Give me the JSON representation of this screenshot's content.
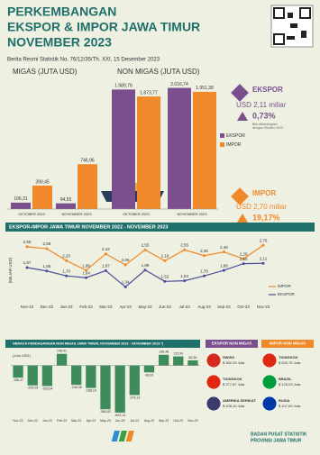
{
  "header": {
    "title": [
      "PERKEMBANGAN",
      "EKSPOR & IMPOR JAWA TIMUR",
      "NOVEMBER 2023"
    ],
    "subtitle": "Berita Resmi Statistik No. 76/12/35/Th. XXI, 15 Desember 2023"
  },
  "summary": {
    "export": {
      "label": "EKSPOR",
      "value": "USD 2,11 miliar",
      "change": "0,73%",
      "note": [
        "Bila dibandingkan",
        "dengan Oktober 2023"
      ]
    },
    "import": {
      "label": "IMPOR",
      "value": "USD 2,70 miliar",
      "change": "19,17%",
      "note": [
        "Bila dibandingkan",
        "dengan Oktober 2023"
      ]
    }
  },
  "country": {
    "export": {
      "title": "EKSPOR NON MIGAS",
      "items": [
        {
          "name": "SWISS",
          "value": "$ 382,25 Juta"
        },
        {
          "name": "TIONGKOK",
          "value": "$ 277,87 Juta"
        },
        {
          "name": "AMERIKA SERIKAT",
          "value": "$ 208,10 Juta"
        }
      ]
    },
    "import": {
      "title": "IMPOR NON MIGAS",
      "items": [
        {
          "name": "TIONGKOK",
          "value": "$ 633,76 Juta"
        },
        {
          "name": "BRAZIL",
          "value": "$ 125,03 Juta"
        },
        {
          "name": "RUSIA",
          "value": "$ 107,89 Juta"
        }
      ]
    }
  },
  "footer": {
    "org": "BADAN PUSAT STATISTIK",
    "region": "PROVINSI JAWA TIMUR"
  },
  "chart_data": [
    {
      "type": "bar",
      "group_labels": [
        "MIGAS (JUTA USD)",
        "NON MIGAS (JUTA USD)"
      ],
      "categories": [
        "OKTOBER 2023",
        "NOVEMBER 2023",
        "OKTOBER 2023",
        "NOVEMBER 2023"
      ],
      "ylim": [
        0,
        2100
      ],
      "series": [
        {
          "name": "EKSPOR",
          "color": "#7b4f8e",
          "values": [
            106.31,
            94.55,
            1989.76,
            2016.74
          ],
          "value_labels": [
            "106,31",
            "94,55",
            "1.989,76",
            "2.016,74"
          ]
        },
        {
          "name": "IMPOR",
          "color": "#f0892a",
          "values": [
            390.45,
            746.96,
            1873.77,
            1951.38
          ],
          "value_labels": [
            "390,45",
            "746,96",
            "1.873,77",
            "1.951,38"
          ]
        }
      ]
    },
    {
      "type": "line",
      "title": "EKSPOR-IMPOR JAWA TIMUR NOVEMBER 2022 - NOVEMBER 2023",
      "ylabel": "(MILIAR USD)",
      "categories": [
        "Nov-22",
        "Dec-22",
        "Jan-23",
        "Feb-23",
        "Mar-23",
        "Apr-23",
        "May-23",
        "Jun-23",
        "Jul-23",
        "Aug-23",
        "Sep-23",
        "Oct-23",
        "Nov-23"
      ],
      "ylim": [
        1,
        3
      ],
      "series": [
        {
          "name": "IMPOR",
          "color": "#f0892a",
          "values": [
            2.65,
            2.59,
            2.2,
            1.88,
            2.42,
            2.06,
            2.55,
            2.19,
            2.55,
            2.36,
            2.48,
            2.26,
            2.7
          ],
          "value_labels": [
            "2,65",
            "2,59",
            "2,20",
            "1,88",
            "2,42",
            "2,06",
            "2,55",
            "2,19",
            "2,55",
            "2,36",
            "2,48",
            "2,26",
            "2,70"
          ]
        },
        {
          "name": "EKSPOR",
          "color": "#4b4f9a",
          "values": [
            1.97,
            1.86,
            1.7,
            1.64,
            1.87,
            1.34,
            1.89,
            1.52,
            1.54,
            1.7,
            1.88,
            2.1,
            2.11
          ],
          "value_labels": [
            "1,97",
            "1,86",
            "1,70",
            "1,64",
            "1,87",
            "1,34",
            "1,89",
            "1,52",
            "1,54",
            "1,70",
            "1,88",
            "2,10",
            "2,11"
          ]
        }
      ]
    },
    {
      "type": "bar",
      "title": "NERACA PERDAGANGAN NON MIGAS JAWA TIMUR, NOVEMBER 2022 - NOVEMBER 2023 *)",
      "ylabel": "(Juta USD)",
      "categories": [
        "Nov-22",
        "Dec-22",
        "Jan-23",
        "Feb-23",
        "Mar-23",
        "Apr-23",
        "May-23",
        "Jun-23",
        "Jul-23",
        "Aug-23",
        "Sep-23",
        "Oct-23",
        "Nov-23"
      ],
      "ylim": [
        -650,
        180
      ],
      "color": "#3e8c5c",
      "values": [
        -156.47,
        -255.05,
        -263.64,
        148.41,
        -248.36,
        -288.16,
        -560.82,
        -603.13,
        -379.13,
        -88.91,
        136.48,
        115.99,
        65.36
      ],
      "value_labels": [
        "-156,47",
        "-255,05",
        "-263,64",
        "148,41",
        "-248,36",
        "-288,16",
        "-560,82",
        "-603,13",
        "-379,13",
        "-88,91",
        "136,48",
        "115,99",
        "65,36"
      ]
    }
  ]
}
